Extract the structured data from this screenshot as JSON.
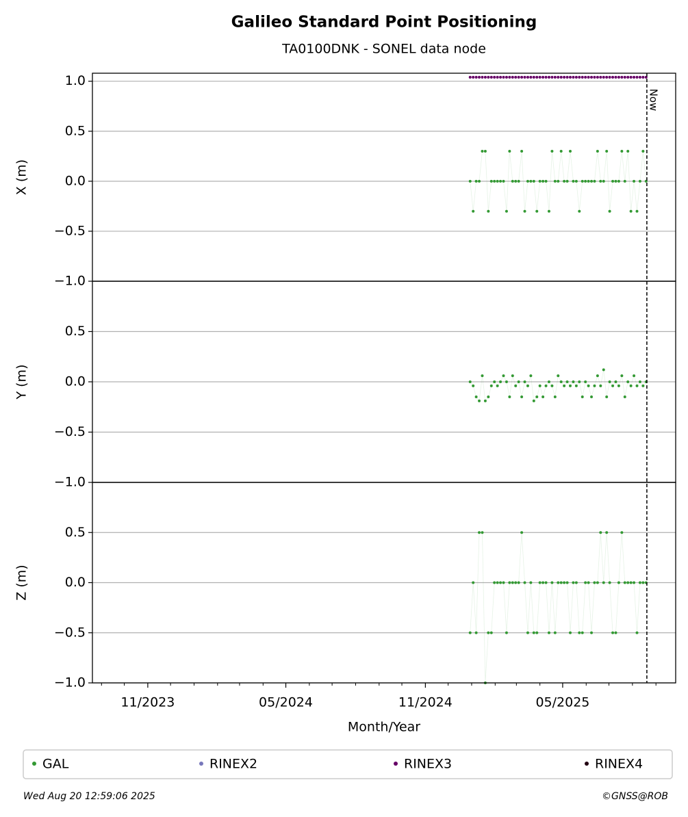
{
  "figure": {
    "title": "Galileo Standard Point Positioning",
    "subtitle": "TA0100DNK - SONEL data node",
    "xlabel": "Month/Year",
    "xlim": [
      "2023-08-20",
      "2025-09-27"
    ],
    "xticks": [
      {
        "value": "2023-11-01",
        "label": "11/2023"
      },
      {
        "value": "2024-05-01",
        "label": "05/2024"
      },
      {
        "value": "2024-11-01",
        "label": "11/2024"
      },
      {
        "value": "2025-05-01",
        "label": "05/2025"
      }
    ],
    "xminorticks": [
      "2023-09-01",
      "2023-10-01",
      "2023-12-01",
      "2024-01-01",
      "2024-02-01",
      "2024-03-01",
      "2024-04-01",
      "2024-06-01",
      "2024-07-01",
      "2024-08-01",
      "2024-09-01",
      "2024-10-01",
      "2024-12-01",
      "2025-01-01",
      "2025-02-01",
      "2025-03-01",
      "2025-04-01",
      "2025-06-01",
      "2025-07-01",
      "2025-08-01",
      "2025-09-01"
    ],
    "now": {
      "label": "Now",
      "x": "2025-08-20"
    },
    "x": [
      "2024-12-30",
      "2025-01-03",
      "2025-01-07",
      "2025-01-11",
      "2025-01-15",
      "2025-01-19",
      "2025-01-23",
      "2025-01-27",
      "2025-01-31",
      "2025-02-04",
      "2025-02-08",
      "2025-02-12",
      "2025-02-16",
      "2025-02-20",
      "2025-02-24",
      "2025-02-28",
      "2025-03-04",
      "2025-03-08",
      "2025-03-12",
      "2025-03-16",
      "2025-03-20",
      "2025-03-24",
      "2025-03-28",
      "2025-04-01",
      "2025-04-05",
      "2025-04-09",
      "2025-04-13",
      "2025-04-17",
      "2025-04-21",
      "2025-04-25",
      "2025-04-29",
      "2025-05-03",
      "2025-05-07",
      "2025-05-11",
      "2025-05-15",
      "2025-05-19",
      "2025-05-23",
      "2025-05-27",
      "2025-05-31",
      "2025-06-04",
      "2025-06-08",
      "2025-06-12",
      "2025-06-16",
      "2025-06-20",
      "2025-06-24",
      "2025-06-28",
      "2025-07-02",
      "2025-07-06",
      "2025-07-10",
      "2025-07-14",
      "2025-07-18",
      "2025-07-22",
      "2025-07-26",
      "2025-07-30",
      "2025-08-03",
      "2025-08-07",
      "2025-08-11",
      "2025-08-15",
      "2025-08-19"
    ]
  },
  "chart_data": [
    {
      "type": "scatter",
      "ylabel": "X (m)",
      "ylim": [
        -1,
        1.08
      ],
      "grid": true,
      "yticks": [
        {
          "value": -1,
          "label": "−1.0"
        },
        {
          "value": -0.5,
          "label": "−0.5"
        },
        {
          "value": 0,
          "label": "0.0"
        },
        0.5,
        {
          "value": 1,
          "label": "1.0"
        }
      ],
      "series": [
        {
          "name": "GAL",
          "color": "#339933",
          "values": [
            0,
            -0.3,
            0,
            0,
            0.3,
            0.3,
            -0.3,
            0,
            0,
            0,
            0,
            0,
            -0.3,
            0.3,
            0,
            0,
            0,
            0.3,
            -0.3,
            0,
            0,
            0,
            -0.3,
            0,
            0,
            0,
            -0.3,
            0.3,
            0,
            0,
            0.3,
            0,
            0,
            0.3,
            0,
            0,
            -0.3,
            0,
            0,
            0,
            0,
            0,
            0.3,
            0,
            0,
            0.3,
            -0.3,
            0,
            0,
            0,
            0.3,
            0,
            0.3,
            -0.3,
            0,
            -0.3,
            0,
            0.3,
            0
          ]
        },
        {
          "name": "RINEX3",
          "color": "#660066",
          "values": [
            1.04,
            1.04,
            1.04,
            1.04,
            1.04,
            1.04,
            1.04,
            1.04,
            1.04,
            1.04,
            1.04,
            1.04,
            1.04,
            1.04,
            1.04,
            1.04,
            1.04,
            1.04,
            1.04,
            1.04,
            1.04,
            1.04,
            1.04,
            1.04,
            1.04,
            1.04,
            1.04,
            1.04,
            1.04,
            1.04,
            1.04,
            1.04,
            1.04,
            1.04,
            1.04,
            1.04,
            1.04,
            1.04,
            1.04,
            1.04,
            1.04,
            1.04,
            1.04,
            1.04,
            1.04,
            1.04,
            1.04,
            1.04,
            1.04,
            1.04,
            1.04,
            1.04,
            1.04,
            1.04,
            1.04,
            1.04,
            1.04,
            1.04,
            1.04
          ]
        }
      ]
    },
    {
      "type": "scatter",
      "ylabel": "Y (m)",
      "ylim": [
        -1,
        1
      ],
      "grid": true,
      "yticks": [
        {
          "value": -1,
          "label": "−1.0"
        },
        {
          "value": -0.5,
          "label": "−0.5"
        },
        {
          "value": 0,
          "label": "0.0"
        },
        0.5
      ],
      "series": [
        {
          "name": "GAL",
          "color": "#339933",
          "values": [
            0,
            -0.04,
            -0.15,
            -0.19,
            0.06,
            -0.19,
            -0.15,
            -0.04,
            0,
            -0.04,
            0,
            0.06,
            0,
            -0.15,
            0.06,
            -0.04,
            0,
            -0.15,
            0,
            -0.04,
            0.06,
            -0.19,
            -0.15,
            -0.04,
            -0.15,
            -0.04,
            0,
            -0.04,
            -0.15,
            0.06,
            0,
            -0.04,
            0,
            -0.04,
            0,
            -0.04,
            0,
            -0.15,
            0,
            -0.04,
            -0.15,
            -0.04,
            0.06,
            -0.04,
            0.12,
            -0.15,
            0,
            -0.04,
            0,
            -0.04,
            0.06,
            -0.15,
            0,
            -0.04,
            0.06,
            -0.04,
            0,
            -0.04,
            0
          ]
        }
      ]
    },
    {
      "type": "scatter",
      "ylabel": "Z (m)",
      "ylim": [
        -1,
        1
      ],
      "grid": true,
      "yticks": [
        {
          "value": -1,
          "label": "−1.0"
        },
        {
          "value": -0.5,
          "label": "−0.5"
        },
        {
          "value": 0,
          "label": "0.0"
        },
        0.5
      ],
      "series": [
        {
          "name": "GAL",
          "color": "#339933",
          "values": [
            -0.5,
            0,
            -0.5,
            0.5,
            0.5,
            -1,
            -0.5,
            -0.5,
            0,
            0,
            0,
            0,
            -0.5,
            0,
            0,
            0,
            0,
            0.5,
            0,
            -0.5,
            0,
            -0.5,
            -0.5,
            0,
            0,
            0,
            -0.5,
            0,
            -0.5,
            0,
            0,
            0,
            0,
            -0.5,
            0,
            0,
            -0.5,
            -0.5,
            0,
            0,
            -0.5,
            0,
            0,
            0.5,
            0,
            0.5,
            0,
            -0.5,
            -0.5,
            0,
            0.5,
            0,
            0,
            0,
            0,
            -0.5,
            0,
            0,
            0
          ]
        }
      ]
    }
  ],
  "legend": {
    "items": [
      {
        "name": "GAL",
        "color": "#339933"
      },
      {
        "name": "RINEX2",
        "color": "#7777bb"
      },
      {
        "name": "RINEX3",
        "color": "#660066"
      },
      {
        "name": "RINEX4",
        "color": "#220011"
      }
    ]
  },
  "footer": {
    "timestamp": "Wed Aug 20 12:59:06 2025",
    "credit": "©GNSS@ROB"
  }
}
